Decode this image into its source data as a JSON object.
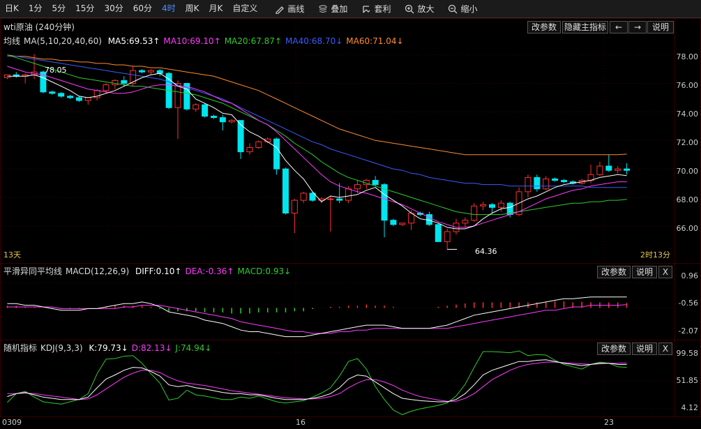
{
  "toolbar": {
    "periods": [
      "日K",
      "1分",
      "5分",
      "15分",
      "30分",
      "60分",
      "4时",
      "周K",
      "月K",
      "自定义"
    ],
    "active_period": "4时",
    "tools": [
      {
        "icon": "pencil-icon",
        "label": "画线"
      },
      {
        "icon": "stack-icon",
        "label": "叠加"
      },
      {
        "icon": "arbitrage-icon",
        "label": "套利"
      },
      {
        "icon": "zoom-in-icon",
        "label": "放大"
      },
      {
        "icon": "zoom-out-icon",
        "label": "缩小"
      }
    ]
  },
  "main": {
    "title": "wti原油 (240分钟)",
    "ma_name": "均线",
    "ma_params": "MA(5,10,20,40,60)",
    "ma_values": [
      {
        "label": "MA5:69.53↑",
        "color": "#ffffff"
      },
      {
        "label": "MA10:69.10↑",
        "color": "#ff3bff"
      },
      {
        "label": "MA20:67.87↑",
        "color": "#2ecc2e"
      },
      {
        "label": "MA40:68.70↓",
        "color": "#3b5bff"
      },
      {
        "label": "MA60:71.04↓",
        "color": "#ff8c2e"
      }
    ],
    "buttons": {
      "change_params": "改参数",
      "hide_main": "隐藏主指标",
      "prev": "←",
      "next": "→",
      "help": "说明"
    },
    "y_labels": [
      "78.00",
      "76.00",
      "74.00",
      "72.00",
      "70.00",
      "68.00",
      "66.00"
    ],
    "high_label": "78.05",
    "low_label": "64.36",
    "left_note": "13天",
    "right_note": "2时13分"
  },
  "macd": {
    "name": "平滑异同平均线",
    "params": "MACD(12,26,9)",
    "values": [
      {
        "label": "DIFF:0.10↑",
        "color": "#ffffff"
      },
      {
        "label": "DEA:-0.36↑",
        "color": "#ff3bff"
      },
      {
        "label": "MACD:0.93↓",
        "color": "#2ecc2e"
      }
    ],
    "buttons": {
      "change_params": "改参数",
      "help": "说明",
      "close": "X"
    },
    "y_labels": [
      "0.96",
      "-0.56",
      "-2.07"
    ]
  },
  "kdj": {
    "name": "随机指标",
    "params": "KDJ(9,3,3)",
    "values": [
      {
        "label": "K:79.73↓",
        "color": "#ffffff"
      },
      {
        "label": "D:82.13↓",
        "color": "#ff3bff"
      },
      {
        "label": "J:74.94↓",
        "color": "#2ecc2e"
      }
    ],
    "buttons": {
      "change_params": "改参数",
      "help": "说明",
      "close": "X"
    },
    "y_labels": [
      "99.58",
      "51.85",
      "4.12"
    ]
  },
  "x_axis": [
    "0309",
    "16",
    "23"
  ],
  "colors": {
    "up": "#ff3030",
    "down": "#00e5ee",
    "ma5": "#ffffff",
    "ma10": "#ff3bff",
    "ma20": "#2ecc2e",
    "ma40": "#3b5bff",
    "ma60": "#ff8c2e"
  },
  "chart_data": {
    "type": "candlestick",
    "y_range": [
      63.5,
      79.5
    ],
    "candles": [
      [
        76.4,
        76.6,
        76.3,
        76.6
      ],
      [
        76.6,
        76.8,
        76.4,
        76.5
      ],
      [
        76.5,
        76.7,
        76.0,
        76.6
      ],
      [
        76.6,
        78.05,
        76.3,
        76.8
      ],
      [
        76.8,
        76.9,
        75.3,
        75.4
      ],
      [
        75.4,
        75.5,
        75.2,
        75.3
      ],
      [
        75.3,
        75.4,
        75.0,
        75.1
      ],
      [
        75.1,
        75.2,
        74.9,
        75.0
      ],
      [
        75.0,
        75.1,
        74.7,
        74.8
      ],
      [
        74.8,
        75.0,
        74.5,
        75.0
      ],
      [
        75.0,
        75.6,
        74.8,
        75.5
      ],
      [
        75.5,
        76.0,
        75.3,
        75.9
      ],
      [
        75.9,
        76.3,
        75.6,
        76.2
      ],
      [
        76.2,
        76.5,
        75.8,
        76.0
      ],
      [
        76.0,
        77.2,
        75.8,
        76.9
      ],
      [
        76.9,
        77.0,
        76.7,
        76.8
      ],
      [
        76.8,
        77.0,
        76.6,
        76.9
      ],
      [
        76.9,
        77.0,
        76.5,
        76.7
      ],
      [
        76.7,
        76.8,
        74.2,
        74.3
      ],
      [
        74.3,
        76.2,
        72.1,
        76.0
      ],
      [
        76.0,
        76.0,
        74.1,
        74.2
      ],
      [
        74.2,
        74.6,
        74.0,
        74.5
      ],
      [
        74.5,
        74.6,
        73.6,
        73.7
      ],
      [
        73.7,
        73.8,
        73.5,
        73.6
      ],
      [
        73.6,
        73.8,
        72.7,
        73.3
      ],
      [
        73.3,
        73.5,
        73.2,
        73.4
      ],
      [
        73.4,
        73.4,
        70.7,
        71.2
      ],
      [
        71.2,
        71.8,
        71.0,
        71.5
      ],
      [
        71.5,
        72.0,
        71.4,
        71.9
      ],
      [
        71.9,
        72.2,
        71.8,
        72.1
      ],
      [
        72.1,
        72.2,
        69.6,
        70.0
      ],
      [
        70.0,
        70.1,
        66.8,
        66.9
      ],
      [
        66.9,
        67.9,
        65.5,
        67.8
      ],
      [
        67.8,
        68.4,
        67.6,
        68.3
      ],
      [
        68.3,
        68.4,
        67.7,
        67.8
      ],
      [
        67.8,
        68.0,
        67.6,
        67.9
      ],
      [
        67.9,
        68.1,
        65.6,
        67.9
      ],
      [
        67.9,
        69.0,
        67.6,
        67.8
      ],
      [
        67.8,
        68.8,
        67.6,
        68.6
      ],
      [
        68.6,
        69.2,
        68.3,
        68.9
      ],
      [
        68.9,
        69.3,
        68.6,
        69.2
      ],
      [
        69.2,
        69.5,
        68.8,
        68.9
      ],
      [
        68.9,
        69.0,
        65.2,
        66.4
      ],
      [
        66.4,
        66.5,
        66.0,
        66.1
      ],
      [
        66.1,
        66.2,
        66.0,
        66.2
      ],
      [
        66.2,
        67.1,
        65.7,
        66.9
      ],
      [
        66.9,
        67.0,
        66.7,
        66.8
      ],
      [
        66.8,
        67.0,
        66.0,
        66.1
      ],
      [
        66.1,
        66.2,
        64.9,
        64.9
      ],
      [
        64.9,
        65.8,
        64.36,
        65.6
      ],
      [
        65.6,
        66.5,
        65.4,
        66.2
      ],
      [
        66.2,
        66.6,
        65.9,
        66.4
      ],
      [
        66.4,
        67.6,
        66.3,
        67.4
      ],
      [
        67.4,
        67.7,
        67.1,
        67.5
      ],
      [
        67.5,
        67.6,
        66.9,
        67.3
      ],
      [
        67.3,
        67.8,
        67.0,
        67.6
      ],
      [
        67.6,
        67.7,
        66.6,
        66.8
      ],
      [
        66.8,
        68.7,
        66.7,
        68.4
      ],
      [
        68.4,
        69.6,
        68.0,
        69.4
      ],
      [
        69.4,
        69.6,
        68.4,
        68.6
      ],
      [
        68.6,
        69.5,
        68.5,
        69.3
      ],
      [
        69.3,
        69.4,
        69.1,
        69.2
      ],
      [
        69.2,
        69.3,
        69.0,
        69.1
      ],
      [
        69.1,
        69.2,
        68.9,
        69.0
      ],
      [
        69.0,
        69.3,
        68.9,
        69.2
      ],
      [
        69.2,
        70.3,
        69.0,
        69.6
      ],
      [
        69.6,
        70.5,
        69.5,
        70.2
      ],
      [
        70.2,
        71.0,
        69.8,
        69.9
      ],
      [
        69.9,
        70.2,
        69.7,
        70.0
      ],
      [
        70.0,
        70.4,
        69.6,
        69.9
      ]
    ],
    "ma5": [
      76.5,
      76.5,
      76.5,
      76.6,
      76.4,
      76.1,
      75.8,
      75.5,
      75.1,
      75.0,
      75.1,
      75.3,
      75.5,
      75.8,
      76.1,
      76.4,
      76.6,
      76.7,
      76.3,
      75.8,
      75.6,
      74.9,
      74.6,
      74.3,
      73.9,
      73.8,
      73.1,
      72.6,
      72.3,
      71.9,
      71.5,
      70.6,
      69.9,
      69.3,
      68.4,
      67.7,
      68.1,
      68.0,
      68.1,
      68.2,
      68.5,
      68.7,
      68.2,
      67.8,
      67.4,
      66.9,
      66.5,
      66.4,
      66.2,
      65.9,
      65.8,
      65.8,
      66.0,
      66.5,
      66.9,
      67.2,
      67.3,
      67.6,
      67.9,
      68.1,
      68.4,
      68.7,
      68.9,
      69.0,
      69.1,
      69.2,
      69.4,
      69.5,
      69.6,
      69.53
    ],
    "ma10": [
      77.2,
      77.0,
      76.8,
      76.7,
      76.6,
      76.4,
      76.2,
      76.0,
      75.8,
      75.6,
      75.5,
      75.4,
      75.3,
      75.3,
      75.4,
      75.6,
      75.8,
      75.9,
      75.9,
      75.8,
      75.8,
      75.6,
      75.4,
      75.1,
      74.8,
      74.6,
      74.2,
      73.8,
      73.4,
      73.1,
      72.6,
      72.0,
      71.4,
      70.8,
      70.2,
      69.6,
      69.1,
      68.8,
      68.6,
      68.4,
      68.3,
      68.1,
      67.9,
      67.7,
      67.5,
      67.2,
      66.9,
      66.6,
      66.3,
      66.1,
      65.9,
      65.9,
      66.0,
      66.2,
      66.4,
      66.6,
      66.8,
      67.0,
      67.3,
      67.6,
      67.9,
      68.1,
      68.3,
      68.5,
      68.6,
      68.8,
      68.9,
      69.0,
      69.1,
      69.1
    ],
    "ma20": [
      78.0,
      77.8,
      77.6,
      77.4,
      77.2,
      77.0,
      76.8,
      76.6,
      76.4,
      76.3,
      76.2,
      76.1,
      76.0,
      75.9,
      75.8,
      75.8,
      75.7,
      75.6,
      75.5,
      75.4,
      75.3,
      75.2,
      75.0,
      74.8,
      74.6,
      74.3,
      74.0,
      73.7,
      73.4,
      73.1,
      72.7,
      72.3,
      71.8,
      71.4,
      71.0,
      70.5,
      70.1,
      69.7,
      69.4,
      69.2,
      69.0,
      68.8,
      68.6,
      68.4,
      68.2,
      68.0,
      67.8,
      67.6,
      67.4,
      67.2,
      67.0,
      66.9,
      66.8,
      66.8,
      66.8,
      66.8,
      66.9,
      67.0,
      67.1,
      67.2,
      67.3,
      67.4,
      67.5,
      67.6,
      67.6,
      67.7,
      67.7,
      67.8,
      67.8,
      67.87
    ],
    "ma40": [
      77.9,
      77.9,
      77.8,
      77.7,
      77.6,
      77.5,
      77.4,
      77.3,
      77.2,
      77.1,
      77.0,
      76.9,
      76.8,
      76.7,
      76.6,
      76.5,
      76.4,
      76.3,
      76.1,
      75.9,
      75.7,
      75.5,
      75.3,
      75.1,
      74.9,
      74.6,
      74.3,
      74.0,
      73.7,
      73.4,
      73.1,
      72.8,
      72.5,
      72.2,
      71.9,
      71.7,
      71.4,
      71.2,
      71.0,
      70.8,
      70.6,
      70.4,
      70.2,
      70.0,
      69.9,
      69.7,
      69.6,
      69.4,
      69.3,
      69.2,
      69.1,
      69.0,
      69.0,
      68.9,
      68.9,
      68.9,
      68.8,
      68.8,
      68.8,
      68.8,
      68.8,
      68.8,
      68.8,
      68.8,
      68.8,
      68.7,
      68.7,
      68.7,
      68.7,
      68.7
    ],
    "ma60": [
      78.0,
      77.9,
      77.9,
      77.8,
      77.7,
      77.7,
      77.6,
      77.6,
      77.5,
      77.5,
      77.4,
      77.4,
      77.3,
      77.3,
      77.2,
      77.2,
      77.1,
      77.1,
      77.0,
      76.9,
      76.8,
      76.7,
      76.6,
      76.5,
      76.3,
      76.1,
      75.9,
      75.7,
      75.5,
      75.2,
      74.9,
      74.6,
      74.3,
      74.0,
      73.7,
      73.4,
      73.1,
      72.8,
      72.6,
      72.4,
      72.2,
      72.0,
      71.9,
      71.8,
      71.7,
      71.6,
      71.5,
      71.4,
      71.3,
      71.2,
      71.1,
      71.0,
      71.0,
      71.0,
      71.0,
      71.0,
      71.0,
      71.0,
      71.0,
      71.0,
      71.0,
      71.0,
      71.0,
      71.0,
      71.0,
      71.0,
      71.0,
      71.0,
      71.0,
      71.04
    ],
    "macd_range": [
      -2.4,
      1.4
    ],
    "diff": [
      -0.3,
      -0.3,
      -0.4,
      -0.4,
      -0.5,
      -0.6,
      -0.7,
      -0.7,
      -0.7,
      -0.6,
      -0.6,
      -0.5,
      -0.4,
      -0.3,
      -0.3,
      -0.2,
      -0.3,
      -0.5,
      -0.8,
      -0.9,
      -1.0,
      -1.1,
      -1.3,
      -1.4,
      -1.5,
      -1.7,
      -1.9,
      -2.0,
      -2.0,
      -2.1,
      -2.2,
      -2.3,
      -2.3,
      -2.3,
      -2.2,
      -2.1,
      -2.0,
      -1.9,
      -1.8,
      -1.7,
      -1.6,
      -1.6,
      -1.6,
      -1.7,
      -1.8,
      -1.8,
      -1.8,
      -1.8,
      -1.7,
      -1.6,
      -1.4,
      -1.2,
      -1.0,
      -0.9,
      -0.8,
      -0.7,
      -0.6,
      -0.5,
      -0.4,
      -0.3,
      -0.2,
      -0.1,
      0.0,
      0.0,
      0.05,
      0.1,
      0.1,
      0.1,
      0.1,
      0.1
    ],
    "dea": [
      -0.5,
      -0.5,
      -0.5,
      -0.5,
      -0.5,
      -0.5,
      -0.6,
      -0.6,
      -0.6,
      -0.6,
      -0.6,
      -0.6,
      -0.6,
      -0.5,
      -0.5,
      -0.4,
      -0.4,
      -0.4,
      -0.5,
      -0.6,
      -0.7,
      -0.8,
      -0.9,
      -1.0,
      -1.1,
      -1.2,
      -1.4,
      -1.5,
      -1.6,
      -1.7,
      -1.8,
      -1.9,
      -2.0,
      -2.0,
      -2.1,
      -2.1,
      -2.1,
      -2.0,
      -2.0,
      -1.9,
      -1.9,
      -1.8,
      -1.8,
      -1.8,
      -1.8,
      -1.8,
      -1.8,
      -1.8,
      -1.8,
      -1.8,
      -1.7,
      -1.6,
      -1.5,
      -1.4,
      -1.3,
      -1.2,
      -1.1,
      -1.0,
      -0.9,
      -0.8,
      -0.7,
      -0.7,
      -0.6,
      -0.5,
      -0.5,
      -0.4,
      -0.4,
      -0.4,
      -0.4,
      -0.36
    ],
    "kdj_range": [
      4.12,
      99.58
    ],
    "k": [
      25,
      30,
      32,
      28,
      24,
      22,
      20,
      20,
      20,
      24,
      40,
      55,
      62,
      70,
      75,
      74,
      68,
      60,
      45,
      42,
      44,
      40,
      38,
      35,
      32,
      30,
      30,
      28,
      28,
      25,
      22,
      20,
      20,
      20,
      22,
      25,
      30,
      40,
      55,
      62,
      60,
      50,
      40,
      30,
      22,
      20,
      18,
      17,
      16,
      16,
      20,
      30,
      45,
      62,
      70,
      75,
      80,
      85,
      85,
      87,
      88,
      85,
      82,
      80,
      78,
      80,
      82,
      82,
      80,
      79.73
    ],
    "d": [
      30,
      30,
      31,
      30,
      28,
      26,
      24,
      22,
      20,
      21,
      28,
      38,
      48,
      58,
      65,
      70,
      70,
      66,
      58,
      52,
      48,
      46,
      44,
      41,
      38,
      35,
      33,
      31,
      29,
      27,
      25,
      23,
      22,
      21,
      21,
      22,
      25,
      30,
      40,
      48,
      54,
      54,
      50,
      44,
      36,
      30,
      25,
      22,
      19,
      17,
      17,
      22,
      30,
      42,
      54,
      62,
      70,
      76,
      80,
      82,
      84,
      84,
      83,
      82,
      81,
      80,
      81,
      82,
      82,
      82.13
    ],
    "j": [
      15,
      30,
      34,
      24,
      16,
      14,
      12,
      16,
      20,
      30,
      64,
      89,
      90,
      94,
      95,
      82,
      64,
      48,
      19,
      22,
      36,
      28,
      26,
      23,
      20,
      20,
      24,
      22,
      26,
      21,
      16,
      14,
      16,
      18,
      24,
      31,
      40,
      60,
      85,
      90,
      72,
      42,
      20,
      2,
      -6,
      0,
      4,
      7,
      10,
      14,
      26,
      46,
      75,
      102,
      102,
      101,
      100,
      103,
      95,
      97,
      96,
      87,
      80,
      76,
      72,
      80,
      84,
      82,
      76,
      74.94
    ]
  }
}
